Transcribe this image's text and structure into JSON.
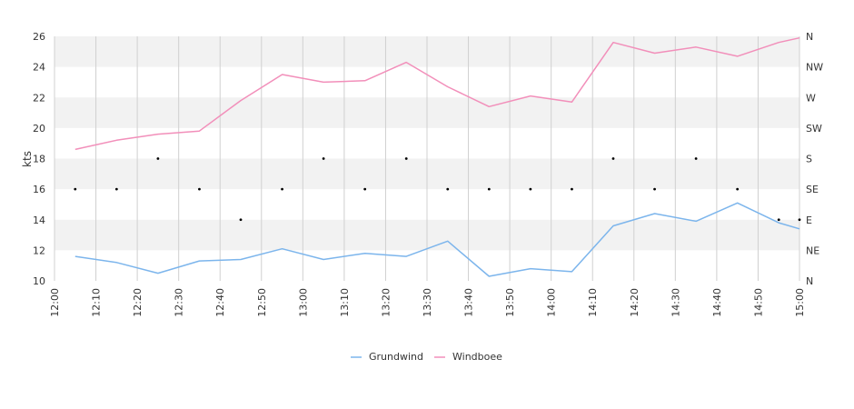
{
  "chart_data": {
    "type": "line",
    "ylabel": "kts",
    "ylim": [
      10,
      26
    ],
    "yticks": [
      10,
      12,
      14,
      16,
      18,
      20,
      22,
      24,
      26
    ],
    "y2_ticks": [
      "N",
      "NE",
      "E",
      "SE",
      "S",
      "SW",
      "W",
      "NW",
      "N"
    ],
    "x_start": "12:00",
    "x_end": "15:00",
    "x_ticks": [
      "12:00",
      "12:10",
      "12:20",
      "12:30",
      "12:40",
      "12:50",
      "13:00",
      "13:10",
      "13:20",
      "13:30",
      "13:40",
      "13:50",
      "14:00",
      "14:10",
      "14:20",
      "14:30",
      "14:40",
      "14:50",
      "15:00"
    ],
    "x": [
      "12:05",
      "12:15",
      "12:25",
      "12:35",
      "12:45",
      "12:55",
      "13:05",
      "13:15",
      "13:25",
      "13:35",
      "13:45",
      "13:55",
      "14:05",
      "14:15",
      "14:25",
      "14:35",
      "14:45",
      "14:55",
      "15:00"
    ],
    "series": [
      {
        "name": "Grundwind",
        "color": "#7cb5ec",
        "values": [
          11.6,
          11.2,
          10.5,
          11.3,
          11.4,
          12.1,
          11.4,
          11.8,
          11.6,
          12.6,
          10.3,
          10.8,
          10.6,
          13.6,
          14.4,
          13.9,
          15.1,
          13.8,
          13.4
        ]
      },
      {
        "name": "Windboee",
        "color": "#f28fba",
        "values": [
          18.6,
          19.2,
          19.6,
          19.8,
          21.8,
          23.5,
          23.0,
          23.1,
          24.3,
          22.7,
          21.4,
          22.1,
          21.7,
          25.6,
          24.9,
          25.3,
          24.7,
          25.6,
          25.9
        ]
      }
    ],
    "direction_markers": {
      "x": [
        "12:05",
        "12:15",
        "12:25",
        "12:35",
        "12:45",
        "12:55",
        "13:05",
        "13:15",
        "13:25",
        "13:35",
        "13:45",
        "13:55",
        "14:05",
        "14:15",
        "14:25",
        "14:35",
        "14:45",
        "14:55",
        "15:00"
      ],
      "values": [
        "SE",
        "SE",
        "S",
        "SE",
        "E",
        "SE",
        "S",
        "SE",
        "S",
        "SE",
        "SE",
        "SE",
        "SE",
        "S",
        "SE",
        "S",
        "SE",
        "E",
        "E"
      ]
    },
    "band_color": "#f2f2f2",
    "grid": true,
    "legend_position": "bottom-center"
  }
}
